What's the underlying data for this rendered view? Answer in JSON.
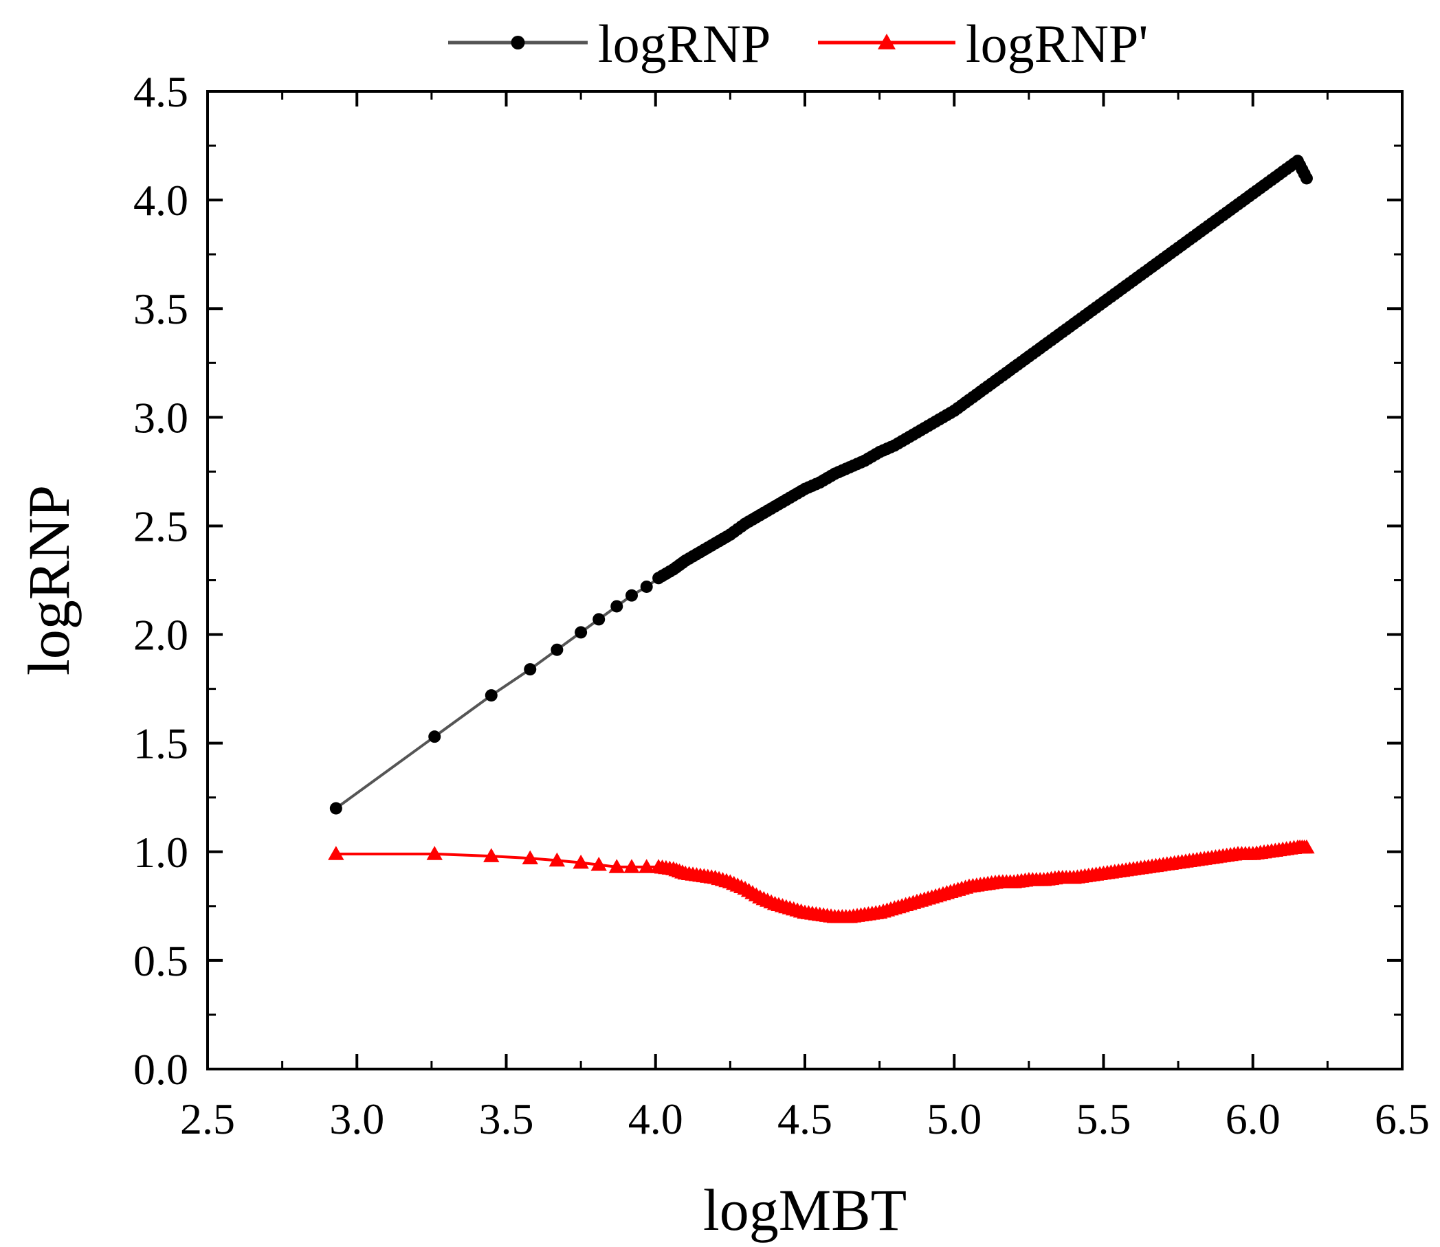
{
  "chart_data": {
    "type": "line",
    "title": "",
    "xlabel": "logMBT",
    "ylabel": "logRNP",
    "xlim": [
      2.5,
      6.5
    ],
    "ylim": [
      0.0,
      4.5
    ],
    "xticks": [
      2.5,
      3.0,
      3.5,
      4.0,
      4.5,
      5.0,
      5.5,
      6.0,
      6.5
    ],
    "xtick_labels": [
      "2.5",
      "3.0",
      "3.5",
      "4.0",
      "4.5",
      "5.0",
      "5.5",
      "6.0",
      "6.5"
    ],
    "yticks": [
      0.0,
      0.5,
      1.0,
      1.5,
      2.0,
      2.5,
      3.0,
      3.5,
      4.0,
      4.5
    ],
    "ytick_labels": [
      "0.0",
      "0.5",
      "1.0",
      "1.5",
      "2.0",
      "2.5",
      "3.0",
      "3.5",
      "4.0",
      "4.5"
    ],
    "grid": false,
    "legend_position": "top-center",
    "series": [
      {
        "name": "logRNP",
        "color": "#000000",
        "line_color": "#555555",
        "marker": "circle",
        "x": [
          2.93,
          3.26,
          3.45,
          3.58,
          3.67,
          3.75,
          3.81,
          3.87,
          3.92,
          3.97,
          4.01,
          4.06,
          4.1,
          4.15,
          4.2,
          4.25,
          4.3,
          4.35,
          4.4,
          4.45,
          4.5,
          4.55,
          4.6,
          4.65,
          4.7,
          4.75,
          4.8,
          4.85,
          4.9,
          4.95,
          5.0,
          5.05,
          5.1,
          5.15,
          5.2,
          5.25,
          5.3,
          5.35,
          5.4,
          5.45,
          5.5,
          5.55,
          5.6,
          5.65,
          5.7,
          5.75,
          5.8,
          5.85,
          5.9,
          5.95,
          6.0,
          6.05,
          6.1,
          6.15,
          6.18
        ],
        "y": [
          1.2,
          1.53,
          1.72,
          1.84,
          1.93,
          2.01,
          2.07,
          2.13,
          2.18,
          2.22,
          2.26,
          2.3,
          2.34,
          2.38,
          2.42,
          2.46,
          2.51,
          2.55,
          2.59,
          2.63,
          2.67,
          2.7,
          2.74,
          2.77,
          2.8,
          2.84,
          2.87,
          2.91,
          2.95,
          2.99,
          3.03,
          3.08,
          3.13,
          3.18,
          3.23,
          3.28,
          3.33,
          3.38,
          3.43,
          3.48,
          3.53,
          3.58,
          3.63,
          3.68,
          3.73,
          3.78,
          3.83,
          3.88,
          3.93,
          3.98,
          4.03,
          4.08,
          4.13,
          4.18,
          4.1
        ]
      },
      {
        "name": "logRNP'",
        "color": "#ff0000",
        "line_color": "#ff0000",
        "marker": "triangle",
        "x": [
          2.93,
          3.26,
          3.45,
          3.58,
          3.67,
          3.75,
          3.81,
          3.87,
          3.92,
          3.97,
          4.01,
          4.06,
          4.1,
          4.15,
          4.2,
          4.25,
          4.3,
          4.35,
          4.4,
          4.45,
          4.5,
          4.55,
          4.6,
          4.65,
          4.7,
          4.75,
          4.8,
          4.85,
          4.9,
          4.95,
          5.0,
          5.05,
          5.1,
          5.15,
          5.2,
          5.25,
          5.3,
          5.35,
          5.4,
          5.45,
          5.5,
          5.55,
          5.6,
          5.65,
          5.7,
          5.75,
          5.8,
          5.85,
          5.9,
          5.95,
          6.0,
          6.05,
          6.1,
          6.15,
          6.18
        ],
        "y": [
          0.99,
          0.99,
          0.98,
          0.97,
          0.96,
          0.95,
          0.94,
          0.93,
          0.93,
          0.93,
          0.93,
          0.92,
          0.9,
          0.89,
          0.88,
          0.86,
          0.83,
          0.79,
          0.76,
          0.74,
          0.72,
          0.71,
          0.7,
          0.7,
          0.71,
          0.72,
          0.74,
          0.76,
          0.78,
          0.8,
          0.82,
          0.84,
          0.85,
          0.86,
          0.86,
          0.87,
          0.87,
          0.88,
          0.88,
          0.89,
          0.9,
          0.91,
          0.92,
          0.93,
          0.94,
          0.95,
          0.96,
          0.97,
          0.98,
          0.99,
          0.99,
          1.0,
          1.01,
          1.02,
          1.02
        ]
      }
    ]
  }
}
